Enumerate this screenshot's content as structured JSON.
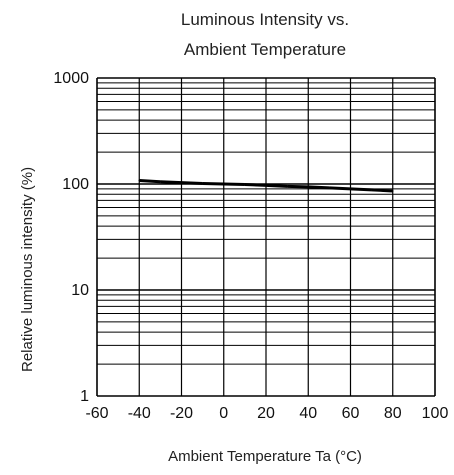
{
  "chart_data": {
    "type": "line",
    "title_lines": [
      "Luminous Intensity vs.",
      "Ambient Temperature"
    ],
    "xlabel": "Ambient Temperature Ta (°C)",
    "ylabel": "Relative luminous intensity  (%)",
    "x_ticks": [
      "-60",
      "-40",
      "-20",
      "0",
      "20",
      "40",
      "60",
      "80",
      "100"
    ],
    "y_ticks": [
      "1",
      "10",
      "100",
      "1000"
    ],
    "xlim": [
      -60,
      100
    ],
    "ylim": [
      1,
      1000
    ],
    "y_scale": "log",
    "grid": true,
    "series": [
      {
        "x": [
          -40,
          -30,
          -20,
          -10,
          0,
          10,
          20,
          30,
          40,
          50,
          60,
          70,
          80
        ],
        "values": [
          108,
          105,
          103,
          101,
          100,
          99,
          97,
          95,
          94,
          92,
          90,
          88,
          86
        ]
      }
    ]
  }
}
